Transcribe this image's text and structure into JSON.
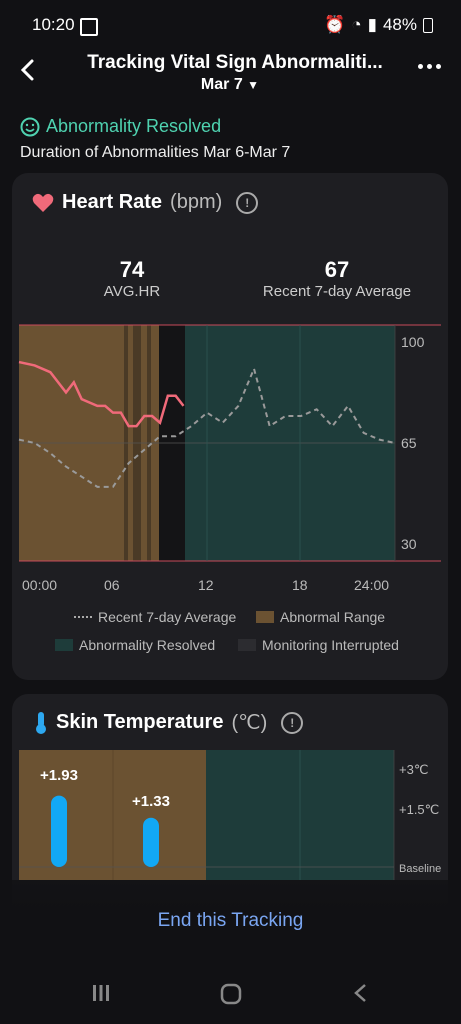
{
  "status_bar": {
    "time": "10:20",
    "battery": "48%"
  },
  "header": {
    "title": "Tracking Vital Sign Abnormaliti...",
    "date": "Mar 7"
  },
  "summary": {
    "status": "Abnormality Resolved",
    "duration": "Duration of Abnormalities Mar 6-Mar 7"
  },
  "heart_rate": {
    "title": "Heart Rate",
    "unit": "(bpm)",
    "avg_value": "74",
    "avg_label": "AVG.HR",
    "recent_value": "67",
    "recent_label": "Recent 7-day Average",
    "legend": {
      "recent": "Recent 7-day Average",
      "abnormal": "Abnormal Range",
      "resolved": "Abnormality Resolved",
      "interrupted": "Monitoring Interrupted"
    }
  },
  "chart_data": {
    "type": "line",
    "x_ticks": [
      "00:00",
      "06",
      "12",
      "18",
      "24:00"
    ],
    "y_ticks": [
      "100",
      "65",
      "30"
    ],
    "ylim": [
      30,
      100
    ],
    "xlim": [
      0,
      24
    ],
    "series": [
      {
        "name": "Recent 7-day Average",
        "x": [
          0,
          1,
          2,
          3,
          4,
          5,
          6,
          7,
          8,
          9,
          10,
          11,
          12,
          13,
          14,
          15,
          16,
          17,
          18,
          19,
          20,
          21,
          22,
          23,
          24
        ],
        "y": [
          66,
          65,
          62,
          58,
          55,
          52,
          52,
          59,
          63,
          67,
          67,
          70,
          74,
          71,
          76,
          87,
          70,
          73,
          73,
          75,
          70,
          76,
          68,
          66,
          65
        ]
      },
      {
        "x": [
          0,
          1,
          2,
          3,
          3.5,
          4,
          5,
          5.5,
          6,
          6.5,
          7,
          7.5,
          8,
          8.5,
          9,
          9.5,
          10,
          10.5
        ],
        "y": [
          89,
          88,
          86,
          80,
          83,
          78,
          76,
          76,
          74,
          74,
          70,
          70,
          73,
          73,
          71,
          79,
          79,
          76
        ]
      }
    ],
    "regions": {
      "abnormal": [
        0,
        9
      ],
      "resolved": [
        10.8,
        24
      ]
    }
  },
  "skin_temp": {
    "title": "Skin Temperature",
    "unit": "(℃)",
    "y_ticks": [
      "+3℃",
      "+1.5℃",
      "Baseline"
    ],
    "bars": [
      {
        "value": "+1.93",
        "num": 1.93
      },
      {
        "value": "+1.33",
        "num": 1.33
      }
    ]
  },
  "footer": {
    "end_label": "End this Tracking"
  }
}
